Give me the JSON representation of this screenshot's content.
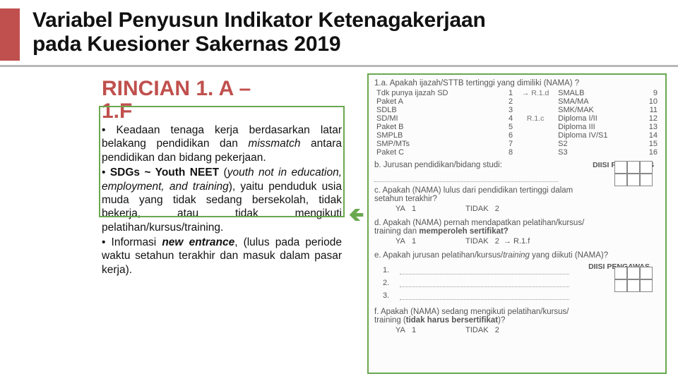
{
  "colors": {
    "accent": "#c0504d",
    "box_green": "#6aa84f",
    "text": "#1a1a1a",
    "muted": "#555555",
    "underline": "#b8b8b8"
  },
  "typography": {
    "title_pt": 30,
    "h2_pt": 30,
    "body_pt": 15.5,
    "q_pt": 11
  },
  "header": {
    "title_line1": "Variabel Penyusun Indikator Ketenagakerjaan",
    "title_line2": "pada Kuesioner Sakernas 2019"
  },
  "left": {
    "heading_a": "RINCIAN 1. A –",
    "heading_b": "1.F",
    "bullets": [
      {
        "pre": "• Keadaan tenaga kerja berdasarkan latar belakang pendidikan dan ",
        "em": "missmatch",
        "post": " antara pendidikan dan bidang pekerjaan."
      },
      {
        "pre": "• ",
        "strong": "SDGs ~ Youth NEET",
        "post1": " (",
        "em": "youth not in education, employment, and training",
        "post2": "), yaitu penduduk usia muda yang tidak sedang bersekolah, tidak bekerja, atau tidak mengikuti pelatihan/kursus/training."
      },
      {
        "pre": "• Informasi ",
        "strongem": "new entrance",
        "post": ", (lulus pada periode waktu setahun terakhir dan masuk dalam pasar kerja)."
      }
    ]
  },
  "questionnaire": {
    "q1a": "1.a. Apakah ijazah/STTB tertinggi yang dimiliki (NAMA) ?",
    "codes_left": [
      [
        "Tdk punya ijazah SD",
        "1"
      ],
      [
        "Paket A",
        "2"
      ],
      [
        "SDLB",
        "3"
      ],
      [
        "SD/MI",
        "4"
      ],
      [
        "Paket B",
        "5"
      ],
      [
        "SMPLB",
        "6"
      ],
      [
        "SMP/MTs",
        "7"
      ],
      [
        "Paket C",
        "8"
      ]
    ],
    "codes_right": [
      [
        "SMALB",
        "9"
      ],
      [
        "SMA/MA",
        "10"
      ],
      [
        "SMK/MAK",
        "11"
      ],
      [
        "Diploma I/II",
        "12"
      ],
      [
        "Diploma III",
        "13"
      ],
      [
        "Diploma IV/S1",
        "14"
      ],
      [
        "S2",
        "15"
      ],
      [
        "S3",
        "16"
      ]
    ],
    "r1d": "→ R.1.d",
    "r1c": "R.1.c",
    "q1b": "b. Jurusan pendidikan/bidang studi:",
    "q1b_diisi": "DIISI PENGAWAS",
    "q1c_1": "c. Apakah (NAMA) lulus dari pendidikan tertinggi dalam",
    "q1c_2": "   setahun terakhir?",
    "ya": "YA",
    "v1": "1",
    "tidak": "TIDAK",
    "v2": "2",
    "q1d_1": "d. Apakah (NAMA) pernah mendapatkan pelatihan/kursus/",
    "q1d_2": "   training dan ",
    "q1d_bold": "memperoleh sertifikat?",
    "q1d_goto": "→ R.1.f",
    "q1e_1": "e. Apakah jurusan pelatihan/kursus/",
    "q1e_em": "training",
    "q1e_2": " yang diikuti (NAMA)?",
    "q1e_diisi": "DIISI PENGAWAS",
    "fill1": "1. ",
    "fill2": "2. ",
    "fill3": "3. ",
    "q1f_1": "f. Apakah (NAMA) sedang mengikuti pelatihan/kursus/",
    "q1f_2": "   training (",
    "q1f_bold": "tidak harus bersertifikat",
    "q1f_3": ")?"
  }
}
